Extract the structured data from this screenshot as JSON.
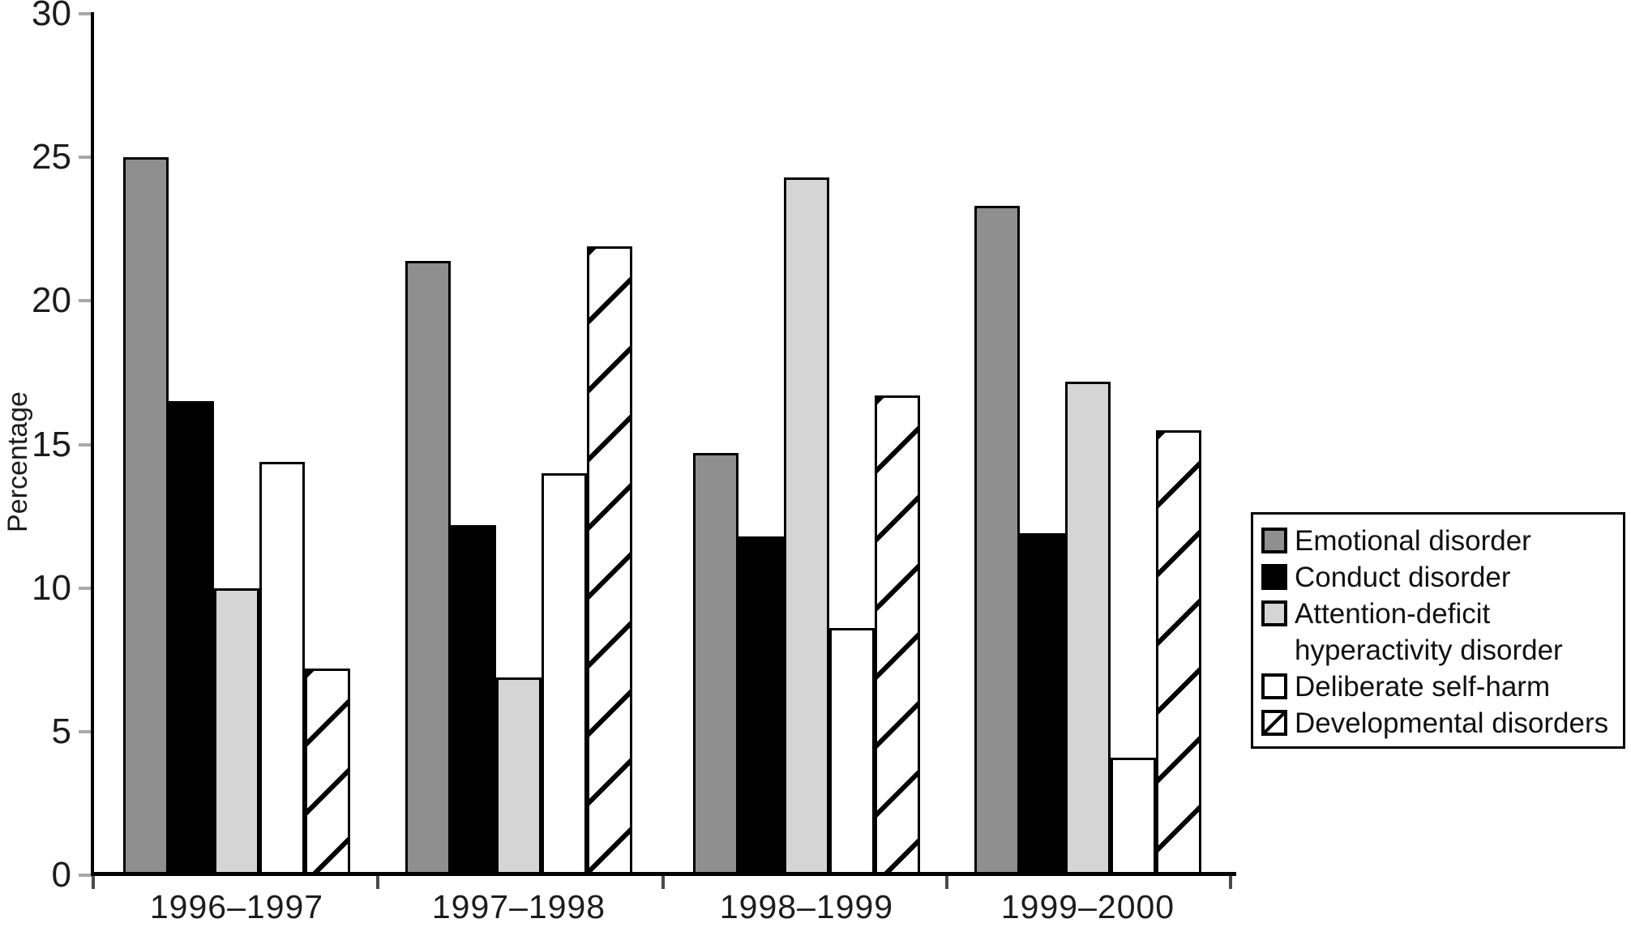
{
  "chart_data": {
    "type": "bar",
    "title": "",
    "xlabel": "",
    "ylabel": "Percentage",
    "ylim": [
      0,
      30
    ],
    "yticks": [
      0,
      5,
      10,
      15,
      20,
      25,
      30
    ],
    "grid": false,
    "legend_position": "right",
    "categories": [
      "1996–1997",
      "1997–1998",
      "1998–1999",
      "1999–2000"
    ],
    "series": [
      {
        "id": "emotional-disorder",
        "name": "Emotional disorder",
        "color": "#8f8f8f",
        "pattern": "solid",
        "values": [
          25.0,
          21.4,
          14.7,
          23.3
        ]
      },
      {
        "id": "conduct-disorder",
        "name": "Conduct disorder",
        "color": "#000000",
        "pattern": "solid",
        "values": [
          16.5,
          12.2,
          11.8,
          11.9
        ]
      },
      {
        "id": "attention-deficit-hyperactivity-disorder",
        "name": "Attention-deficit hyperactivity disorder",
        "color": "#d5d5d5",
        "pattern": "solid",
        "values": [
          10.0,
          6.9,
          24.3,
          17.2
        ]
      },
      {
        "id": "deliberate-self-harm",
        "name": "Deliberate self-harm",
        "color": "#ffffff",
        "pattern": "solid",
        "values": [
          14.4,
          14.0,
          8.6,
          4.1
        ]
      },
      {
        "id": "developmental-disorders",
        "name": "Developmental disorders",
        "color": "#ffffff",
        "pattern": "diagonal-hatch",
        "hatch_color": "#000000",
        "values": [
          7.2,
          21.9,
          16.7,
          15.5
        ]
      }
    ]
  }
}
